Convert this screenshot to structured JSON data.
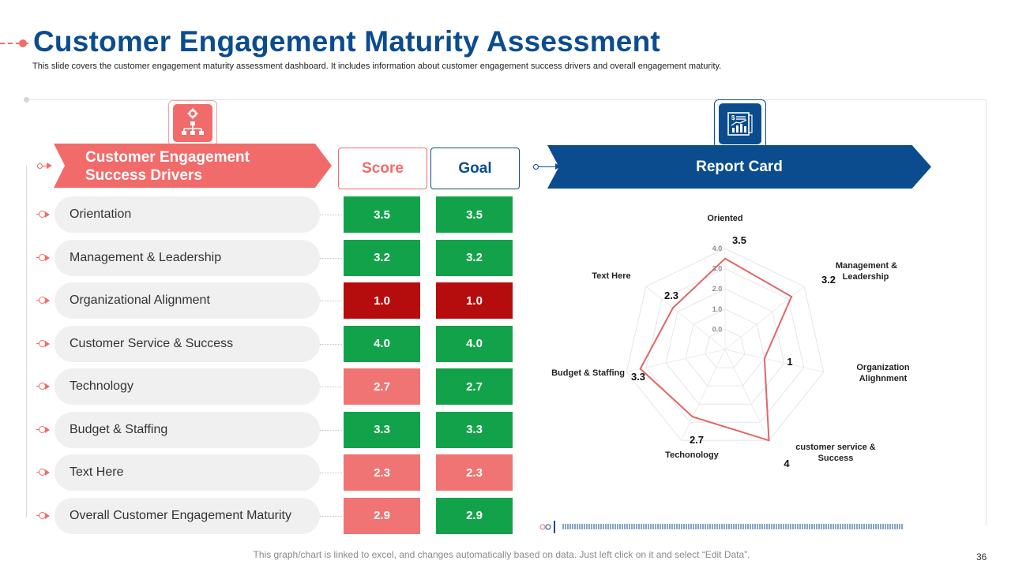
{
  "title": "Customer Engagement Maturity Assessment",
  "subtitle": "This slide covers the customer engagement maturity assessment dashboard. It includes information about customer engagement success drivers and overall engagement maturity.",
  "left_banner": "Customer Engagement Success Drivers",
  "score_header": "Score",
  "goal_header": "Goal",
  "report_banner": "Report Card",
  "icons": {
    "left": "org-chart-gear-icon",
    "right": "report-document-chart-icon"
  },
  "colors": {
    "brand_blue": "#0b4c8e",
    "accent_red": "#f26b6b",
    "green": "#12a34a",
    "dark_red": "#b50d0d",
    "pink": "#f07474"
  },
  "rows": [
    {
      "label": "Orientation",
      "score": "3.5",
      "goal": "3.5",
      "score_color": "#12a34a",
      "goal_color": "#12a34a"
    },
    {
      "label": "Management & Leadership",
      "score": "3.2",
      "goal": "3.2",
      "score_color": "#12a34a",
      "goal_color": "#12a34a"
    },
    {
      "label": "Organizational Alignment",
      "score": "1.0",
      "goal": "1.0",
      "score_color": "#b50d0d",
      "goal_color": "#b50d0d"
    },
    {
      "label": "Customer Service & Success",
      "score": "4.0",
      "goal": "4.0",
      "score_color": "#12a34a",
      "goal_color": "#12a34a"
    },
    {
      "label": "Technology",
      "score": "2.7",
      "goal": "2.7",
      "score_color": "#f07474",
      "goal_color": "#12a34a"
    },
    {
      "label": "Budget & Staffing",
      "score": "3.3",
      "goal": "3.3",
      "score_color": "#12a34a",
      "goal_color": "#12a34a"
    },
    {
      "label": "Text Here",
      "score": "2.3",
      "goal": "2.3",
      "score_color": "#f07474",
      "goal_color": "#f07474"
    },
    {
      "label": "Overall Customer Engagement Maturity",
      "score": "2.9",
      "goal": "2.9",
      "score_color": "#f07474",
      "goal_color": "#12a34a"
    }
  ],
  "chart_data": {
    "type": "radar",
    "title": "Report Card",
    "axes": [
      {
        "label": [
          "Oriented"
        ],
        "value": 3.5,
        "value_label": "3.5"
      },
      {
        "label": [
          "Management &",
          "Leadership"
        ],
        "value": 3.2,
        "value_label": "3.2"
      },
      {
        "label": [
          "Organization",
          "Alighnment"
        ],
        "value": 1,
        "value_label": "1"
      },
      {
        "label": [
          "customer service &",
          "Success"
        ],
        "value": 4,
        "value_label": "4"
      },
      {
        "label": [
          "Techonology"
        ],
        "value": 2.7,
        "value_label": "2.7"
      },
      {
        "label": [
          "Budget & Staffing"
        ],
        "value": 3.3,
        "value_label": "3.3"
      },
      {
        "label": [
          "Text Here"
        ],
        "value": 2.3,
        "value_label": "2.3"
      }
    ],
    "ticks": [
      "0.0",
      "1.0",
      "2.0",
      "3.0",
      "4.0"
    ],
    "tick_values": [
      0,
      1,
      2,
      3,
      4
    ],
    "rlim": [
      -1,
      4
    ],
    "series_color": "#e06666"
  },
  "footer": "This graph/chart is linked to excel, and changes automatically based on data. Just left click on it and select “Edit Data”.",
  "page_number": "36"
}
